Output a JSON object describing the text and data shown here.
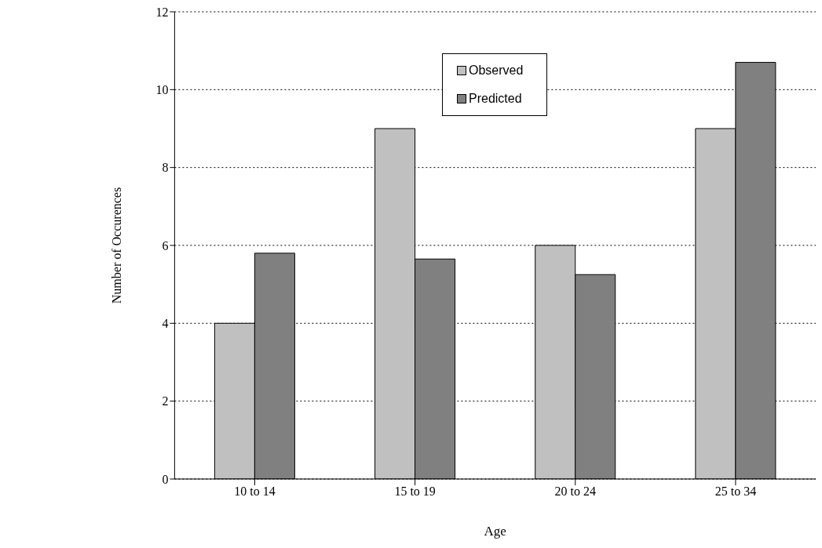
{
  "chart_data": {
    "type": "bar",
    "xlabel": "Age",
    "ylabel": "Number of Occurences",
    "categories": [
      "10 to 14",
      "15 to 19",
      "20 to 24",
      "25 to 34"
    ],
    "series": [
      {
        "name": "Observed",
        "color": "#c0c0c0",
        "values": [
          4,
          9,
          6,
          9
        ]
      },
      {
        "name": "Predicted",
        "color": "#808080",
        "values": [
          5.8,
          5.65,
          5.25,
          10.7
        ]
      }
    ],
    "ylim": [
      0,
      12
    ],
    "yticks": [
      0,
      2,
      4,
      6,
      8,
      10,
      12
    ],
    "grid": "y",
    "legend": "top"
  }
}
